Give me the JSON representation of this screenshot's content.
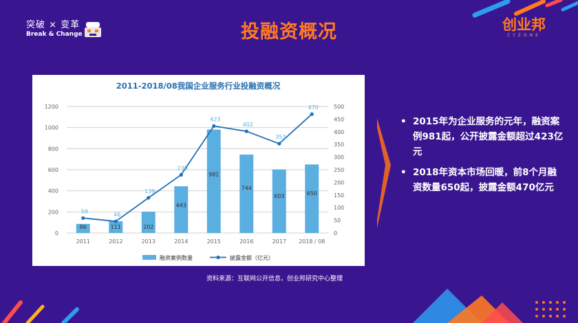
{
  "header": {
    "logo_cn": "突破 × 变革",
    "logo_en": "Break & Change",
    "title": "投融资概况",
    "brand_cn": "创业邦",
    "brand_en": "CYZONE"
  },
  "chart_data": {
    "type": "bar",
    "title": "2011-2018/08我国企业服务行业投融资概况",
    "categories": [
      "2011",
      "2012",
      "2013",
      "2014",
      "2015",
      "2016",
      "2017",
      "2018 / 08"
    ],
    "series": [
      {
        "name": "融资案例数量",
        "type": "bar",
        "axis": "left",
        "values": [
          86,
          111,
          202,
          443,
          981,
          744,
          603,
          650
        ]
      },
      {
        "name": "披露金额（亿元）",
        "type": "line",
        "axis": "right",
        "values": [
          59,
          46,
          139,
          230,
          423,
          402,
          353,
          470
        ]
      }
    ],
    "ylim_left": [
      0,
      1200
    ],
    "yticks_left": [
      0,
      200,
      400,
      600,
      800,
      1000,
      1200
    ],
    "ylim_right": [
      0,
      500
    ],
    "yticks_right": [
      0,
      50,
      100,
      150,
      200,
      250,
      300,
      350,
      400,
      450,
      500
    ],
    "grid": true,
    "legend": "bottom",
    "colors": {
      "bar": "#5aaee0",
      "line": "#1f6fb8",
      "grid": "#d0d0d0",
      "axis_text": "#666666"
    }
  },
  "source_note": "资料来源：互联网公开信息，创业邦研究中心整理",
  "bullets": [
    "2015年为企业服务的元年，融资案例981起，公开披露金额超过423亿元",
    "2018年资本市场回暖，前8个月融资数量650起，披露金额470亿元"
  ],
  "bullet_symbol": "•",
  "colors": {
    "background": "#3a1590",
    "accent": "#ff7a22",
    "title": "#ff7a22"
  }
}
